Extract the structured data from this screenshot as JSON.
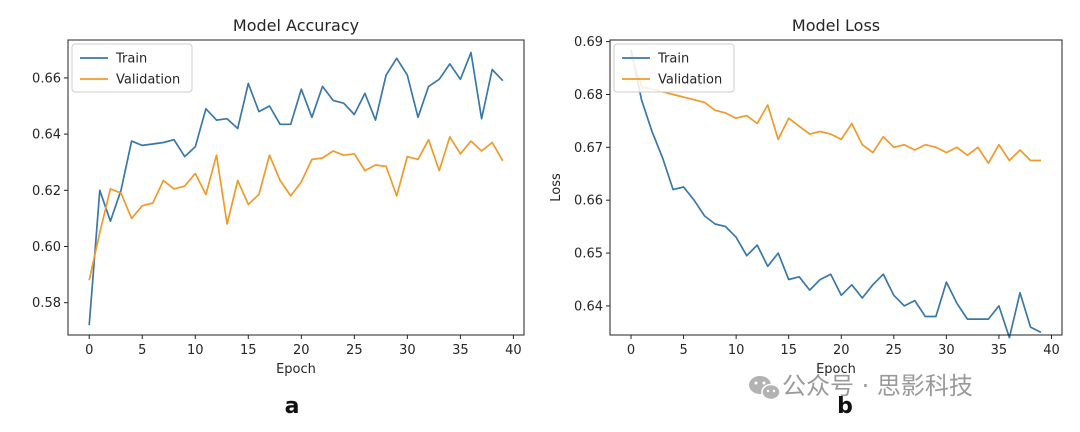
{
  "chart_data": [
    {
      "type": "line",
      "title": "Model Accuracy",
      "xlabel": "Epoch",
      "ylabel": "",
      "panel_label": "a",
      "xlim": [
        -2,
        41
      ],
      "ylim": [
        0.5685,
        0.6735
      ],
      "xticks": [
        0,
        5,
        10,
        15,
        20,
        25,
        30,
        35,
        40
      ],
      "yticks": [
        0.58,
        0.6,
        0.62,
        0.64,
        0.66
      ],
      "ytick_labels": [
        "0.58",
        "0.60",
        "0.62",
        "0.64",
        "0.66"
      ],
      "legend": "upper-left",
      "x": [
        0,
        1,
        2,
        3,
        4,
        5,
        6,
        7,
        8,
        9,
        10,
        11,
        12,
        13,
        14,
        15,
        16,
        17,
        18,
        19,
        20,
        21,
        22,
        23,
        24,
        25,
        26,
        27,
        28,
        29,
        30,
        31,
        32,
        33,
        34,
        35,
        36,
        37,
        38,
        39
      ],
      "series": [
        {
          "name": "Train",
          "color": "#3a78a8",
          "values": [
            0.572,
            0.62,
            0.609,
            0.62,
            0.6375,
            0.636,
            0.6365,
            0.637,
            0.638,
            0.632,
            0.6355,
            0.649,
            0.645,
            0.6455,
            0.642,
            0.658,
            0.648,
            0.65,
            0.6435,
            0.6435,
            0.656,
            0.646,
            0.657,
            0.652,
            0.651,
            0.647,
            0.6545,
            0.645,
            0.661,
            0.667,
            0.661,
            0.646,
            0.657,
            0.6595,
            0.665,
            0.6595,
            0.669,
            0.6455,
            0.663,
            0.659
          ]
        },
        {
          "name": "Validation",
          "color": "#f09a2a",
          "values": [
            0.588,
            0.605,
            0.6205,
            0.619,
            0.61,
            0.6145,
            0.6155,
            0.6235,
            0.6205,
            0.6215,
            0.626,
            0.6185,
            0.6325,
            0.608,
            0.6235,
            0.615,
            0.6185,
            0.6325,
            0.6235,
            0.618,
            0.623,
            0.631,
            0.6315,
            0.634,
            0.6325,
            0.633,
            0.627,
            0.629,
            0.6285,
            0.618,
            0.632,
            0.631,
            0.638,
            0.627,
            0.639,
            0.633,
            0.6375,
            0.634,
            0.637,
            0.6305
          ]
        }
      ]
    },
    {
      "type": "line",
      "title": "Model Loss",
      "xlabel": "Epoch",
      "ylabel": "Loss",
      "panel_label": "b",
      "xlim": [
        -2,
        41
      ],
      "ylim": [
        0.6345,
        0.6903
      ],
      "xticks": [
        0,
        5,
        10,
        15,
        20,
        25,
        30,
        35,
        40
      ],
      "yticks": [
        0.64,
        0.65,
        0.66,
        0.67,
        0.68,
        0.69
      ],
      "ytick_labels": [
        "0.64",
        "0.65",
        "0.66",
        "0.67",
        "0.68",
        "0.69"
      ],
      "legend": "upper-left",
      "x": [
        0,
        1,
        2,
        3,
        4,
        5,
        6,
        7,
        8,
        9,
        10,
        11,
        12,
        13,
        14,
        15,
        16,
        17,
        18,
        19,
        20,
        21,
        22,
        23,
        24,
        25,
        26,
        27,
        28,
        29,
        30,
        31,
        32,
        33,
        34,
        35,
        36,
        37,
        38,
        39
      ],
      "series": [
        {
          "name": "Train",
          "color": "#3a78a8",
          "values": [
            0.6885,
            0.679,
            0.673,
            0.668,
            0.662,
            0.6625,
            0.66,
            0.657,
            0.6555,
            0.655,
            0.653,
            0.6495,
            0.6515,
            0.6475,
            0.65,
            0.645,
            0.6455,
            0.643,
            0.645,
            0.646,
            0.642,
            0.644,
            0.6415,
            0.644,
            0.646,
            0.642,
            0.64,
            0.641,
            0.638,
            0.638,
            0.6445,
            0.6405,
            0.6375,
            0.6375,
            0.6375,
            0.64,
            0.634,
            0.6425,
            0.636,
            0.635
          ]
        },
        {
          "name": "Validation",
          "color": "#f09a2a",
          "values": [
            0.6875,
            0.6815,
            0.681,
            0.6805,
            0.68,
            0.6795,
            0.679,
            0.6785,
            0.677,
            0.6765,
            0.6755,
            0.676,
            0.6745,
            0.678,
            0.6715,
            0.6755,
            0.674,
            0.6725,
            0.673,
            0.6725,
            0.6715,
            0.6745,
            0.6705,
            0.669,
            0.672,
            0.67,
            0.6705,
            0.6695,
            0.6705,
            0.67,
            0.669,
            0.67,
            0.6685,
            0.67,
            0.667,
            0.6705,
            0.6675,
            0.6695,
            0.6675,
            0.6675
          ]
        }
      ]
    }
  ],
  "watermark": {
    "text": "公众号 · 思影科技",
    "icon": "wechat-icon"
  }
}
